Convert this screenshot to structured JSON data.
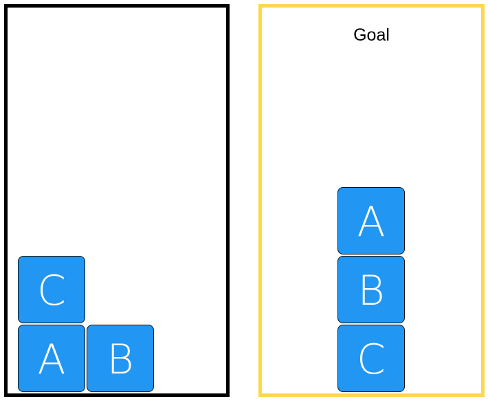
{
  "workspace": {
    "blocks": [
      {
        "label": "C",
        "color": "#2196f3"
      },
      {
        "label": "A",
        "color": "#2196f3"
      },
      {
        "label": "B",
        "color": "#2196f3"
      }
    ]
  },
  "goal": {
    "title": "Goal",
    "border_color": "#ffd84a",
    "stack_top_to_bottom": [
      "A",
      "B",
      "C"
    ]
  }
}
